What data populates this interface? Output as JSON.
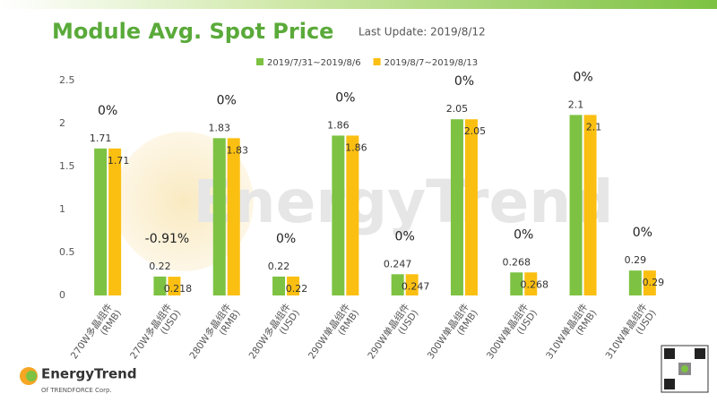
{
  "chart_data": {
    "type": "bar",
    "title": "Module Avg. Spot Price",
    "subtitle": "Last Update: 2019/8/12",
    "watermark": "EnergyTrend",
    "logo": {
      "name": "EnergyTrend",
      "tagline": "Of TRENDFORCE Corp."
    },
    "categories": [
      "270W多晶组件\n(RMB)",
      "270W多晶组件\n(USD)",
      "280W多晶组件\n(RMB)",
      "280W多晶组件\n(USD)",
      "290W单晶组件\n(RMB)",
      "290W单晶组件\n(USD)",
      "300W单晶组件\n(RMB)",
      "300W单晶组件\n(USD)",
      "310W单晶组件\n(RMB)",
      "310W单晶组件\n(USD)"
    ],
    "series": [
      {
        "name": "2019/7/31~2019/8/6",
        "color": "#7dc242",
        "values": [
          1.71,
          0.22,
          1.83,
          0.22,
          1.86,
          0.247,
          2.05,
          0.268,
          2.1,
          0.29
        ]
      },
      {
        "name": "2019/8/7~2019/8/13",
        "color": "#fbbf12",
        "values": [
          1.71,
          0.218,
          1.83,
          0.22,
          1.86,
          0.247,
          2.05,
          0.268,
          2.1,
          0.29
        ]
      }
    ],
    "changes": {
      "values": [
        0,
        -0.91,
        0,
        0,
        0,
        0,
        0,
        0,
        0,
        0
      ],
      "value_labels": [
        "0%",
        "-0.91%",
        "0%",
        "0%",
        "0%",
        "0%",
        "0%",
        "0%",
        "0%",
        "0%"
      ]
    },
    "ylim": [
      0,
      2.5
    ],
    "yticks": [
      0,
      0.5,
      1,
      1.5,
      2,
      2.5
    ],
    "grid": false
  }
}
